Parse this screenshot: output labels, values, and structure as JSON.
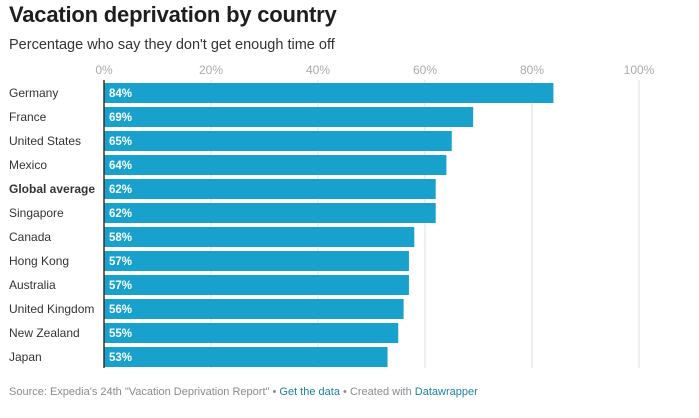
{
  "title": "Vacation deprivation by country",
  "subtitle": "Percentage who say they don't get enough time off",
  "colors": {
    "bar": "#18a1cd",
    "grid": "#e2e2e2",
    "axis": "#333333",
    "tick_label": "#aaaaaa",
    "label_in_bar": "#ffffff"
  },
  "chart_data": {
    "type": "bar",
    "orientation": "horizontal",
    "categories": [
      "Germany",
      "France",
      "United States",
      "Mexico",
      "Global average",
      "Singapore",
      "Canada",
      "Hong Kong",
      "Australia",
      "United Kingdom",
      "New Zealand",
      "Japan"
    ],
    "values": [
      84,
      69,
      65,
      64,
      62,
      62,
      58,
      57,
      57,
      56,
      55,
      53
    ],
    "value_labels": [
      "84%",
      "69%",
      "65%",
      "64%",
      "62%",
      "62%",
      "58%",
      "57%",
      "57%",
      "56%",
      "55%",
      "53%"
    ],
    "highlighted_category": "Global average",
    "xlim": [
      0,
      100
    ],
    "xticks": [
      0,
      20,
      40,
      60,
      80,
      100
    ],
    "xtick_labels": [
      "0%",
      "20%",
      "40%",
      "60%",
      "80%",
      "100%"
    ],
    "grid": true,
    "title": "Vacation deprivation by country",
    "subtitle": "Percentage who say they don't get enough time off"
  },
  "footer": {
    "source": "Source: Expedia's 24th \"Vacation Deprivation Report\"",
    "separator": "•",
    "get_data_label": "Get the data",
    "created_with": "Created with",
    "tool_label": "Datawrapper"
  }
}
